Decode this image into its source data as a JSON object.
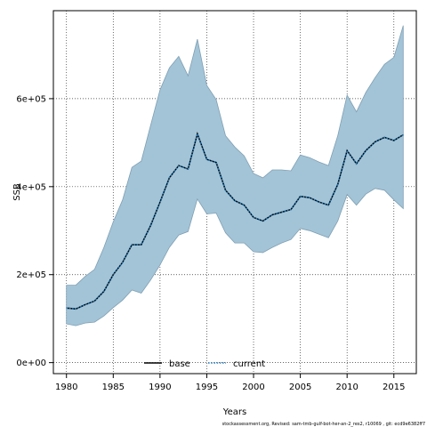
{
  "chart_data": {
    "type": "line",
    "xlabel": "Years",
    "ylabel": "SSB",
    "xlim": [
      1978.6,
      2017.4
    ],
    "ylim": [
      -25000,
      800000
    ],
    "x_ticks": [
      1980,
      1985,
      1990,
      1995,
      2000,
      2005,
      2010,
      2015
    ],
    "x_tick_labels": [
      "1980",
      "1985",
      "1990",
      "1995",
      "2000",
      "2005",
      "2010",
      "2015"
    ],
    "y_ticks": [
      0,
      200000,
      400000,
      600000
    ],
    "y_tick_labels": [
      "0e+00",
      "2e+05",
      "4e+05",
      "6e+05"
    ],
    "grid": true,
    "legend_position": "bottom-center",
    "x": [
      1980,
      1981,
      1982,
      1983,
      1984,
      1985,
      1986,
      1987,
      1988,
      1989,
      1990,
      1991,
      1992,
      1993,
      1994,
      1995,
      1996,
      1997,
      1998,
      1999,
      2000,
      2001,
      2002,
      2003,
      2004,
      2005,
      2006,
      2007,
      2008,
      2009,
      2010,
      2011,
      2012,
      2013,
      2014,
      2015,
      2016
    ],
    "series": [
      {
        "name": "base",
        "style": "solid",
        "color": "#000000",
        "values": [
          124000,
          122000,
          132000,
          140000,
          162000,
          200000,
          228000,
          268000,
          268000,
          312000,
          365000,
          420000,
          448000,
          440000,
          520000,
          462000,
          455000,
          392000,
          368000,
          358000,
          330000,
          322000,
          336000,
          342000,
          348000,
          378000,
          375000,
          365000,
          358000,
          405000,
          482000,
          452000,
          482000,
          502000,
          512000,
          505000,
          518000
        ]
      },
      {
        "name": "current",
        "style": "dotted",
        "color": "#2a7fbf",
        "values": [
          124000,
          122000,
          132000,
          140000,
          162000,
          200000,
          228000,
          268000,
          268000,
          312000,
          365000,
          420000,
          448000,
          440000,
          520000,
          462000,
          455000,
          392000,
          368000,
          358000,
          330000,
          322000,
          336000,
          342000,
          348000,
          378000,
          375000,
          365000,
          358000,
          405000,
          482000,
          452000,
          482000,
          502000,
          512000,
          505000,
          518000
        ]
      }
    ],
    "band": {
      "fill": "#a3c4d6",
      "lower": [
        88000,
        84000,
        90000,
        92000,
        106000,
        125000,
        142000,
        165000,
        158000,
        188000,
        222000,
        262000,
        290000,
        298000,
        372000,
        338000,
        340000,
        295000,
        272000,
        272000,
        252000,
        250000,
        262000,
        272000,
        280000,
        305000,
        300000,
        292000,
        284000,
        322000,
        382000,
        358000,
        383000,
        396000,
        392000,
        370000,
        350000
      ],
      "upper": [
        176000,
        176000,
        196000,
        212000,
        262000,
        320000,
        370000,
        444000,
        458000,
        540000,
        620000,
        670000,
        696000,
        652000,
        735000,
        630000,
        598000,
        516000,
        490000,
        470000,
        430000,
        420000,
        438000,
        438000,
        436000,
        472000,
        466000,
        456000,
        448000,
        516000,
        608000,
        570000,
        614000,
        648000,
        678000,
        694000,
        766000
      ]
    },
    "footnote": "stockassessment.org, Revised: sam-tmb-gulf-bot-her-an-2_res2, r10069 , git: ecd9e6382ff7"
  }
}
